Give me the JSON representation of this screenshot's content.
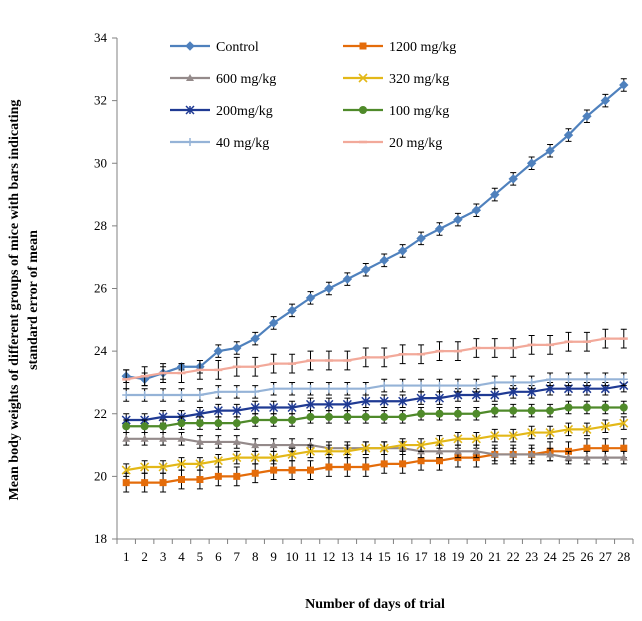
{
  "chart_data": {
    "type": "line",
    "xlabel": "Number of days of trial",
    "ylabel_lines": [
      "Mean body weights of different groups of mice with bars indicating",
      "standard error of mean"
    ],
    "x": [
      "1",
      "2",
      "3",
      "4",
      "5",
      "6",
      "7",
      "8",
      "9",
      "10",
      "11",
      "12",
      "13",
      "14",
      "15",
      "16",
      "17",
      "18",
      "19",
      "20",
      "21",
      "22",
      "23",
      "24",
      "25",
      "26",
      "27",
      "28"
    ],
    "ylim": [
      18,
      34
    ],
    "yticks": [
      "18",
      "20",
      "22",
      "24",
      "26",
      "28",
      "30",
      "32",
      "34"
    ],
    "grid": false,
    "legend_position": "top-left",
    "error_bars": true,
    "series": [
      {
        "name": "Control",
        "color": "#4f81bd",
        "marker": "diamond",
        "values": [
          23.2,
          23.1,
          23.3,
          23.5,
          23.5,
          24.0,
          24.1,
          24.4,
          24.9,
          25.3,
          25.7,
          26.0,
          26.3,
          26.6,
          26.9,
          27.2,
          27.6,
          27.9,
          28.2,
          28.5,
          29.0,
          29.5,
          30.0,
          30.4,
          30.9,
          31.5,
          32.0,
          32.5
        ],
        "errors": [
          0.2,
          0.2,
          0.2,
          0.1,
          0.2,
          0.2,
          0.2,
          0.2,
          0.2,
          0.2,
          0.2,
          0.2,
          0.2,
          0.2,
          0.2,
          0.2,
          0.2,
          0.2,
          0.2,
          0.2,
          0.2,
          0.2,
          0.2,
          0.2,
          0.2,
          0.2,
          0.2,
          0.2
        ]
      },
      {
        "name": "1200 mg/kg",
        "color": "#e46c0a",
        "marker": "square",
        "values": [
          19.8,
          19.8,
          19.8,
          19.9,
          19.9,
          20.0,
          20.0,
          20.1,
          20.2,
          20.2,
          20.2,
          20.3,
          20.3,
          20.3,
          20.4,
          20.4,
          20.5,
          20.5,
          20.6,
          20.6,
          20.7,
          20.7,
          20.7,
          20.8,
          20.8,
          20.9,
          20.9,
          20.9
        ],
        "errors": [
          0.3,
          0.3,
          0.3,
          0.3,
          0.3,
          0.3,
          0.3,
          0.3,
          0.3,
          0.3,
          0.3,
          0.3,
          0.3,
          0.3,
          0.3,
          0.3,
          0.3,
          0.3,
          0.3,
          0.3,
          0.3,
          0.3,
          0.3,
          0.3,
          0.3,
          0.3,
          0.3,
          0.3
        ]
      },
      {
        "name": "600 mg/kg",
        "color": "#948a8a",
        "marker": "triangle",
        "values": [
          21.2,
          21.2,
          21.2,
          21.2,
          21.1,
          21.1,
          21.1,
          21.0,
          21.0,
          21.0,
          21.0,
          20.9,
          20.9,
          20.9,
          20.9,
          20.9,
          20.8,
          20.8,
          20.8,
          20.8,
          20.7,
          20.7,
          20.7,
          20.7,
          20.6,
          20.6,
          20.6,
          20.6
        ],
        "errors": [
          0.2,
          0.2,
          0.2,
          0.2,
          0.2,
          0.2,
          0.2,
          0.2,
          0.2,
          0.2,
          0.2,
          0.2,
          0.2,
          0.2,
          0.2,
          0.2,
          0.2,
          0.2,
          0.2,
          0.2,
          0.2,
          0.2,
          0.2,
          0.2,
          0.2,
          0.2,
          0.2,
          0.2
        ]
      },
      {
        "name": "320 mg/kg",
        "color": "#e3b818",
        "marker": "x",
        "values": [
          20.2,
          20.3,
          20.3,
          20.4,
          20.4,
          20.5,
          20.6,
          20.6,
          20.6,
          20.7,
          20.8,
          20.8,
          20.8,
          20.9,
          20.9,
          21.0,
          21.0,
          21.1,
          21.2,
          21.2,
          21.3,
          21.3,
          21.4,
          21.4,
          21.5,
          21.5,
          21.6,
          21.7
        ],
        "errors": [
          0.2,
          0.2,
          0.2,
          0.2,
          0.2,
          0.2,
          0.2,
          0.2,
          0.2,
          0.2,
          0.2,
          0.2,
          0.2,
          0.2,
          0.2,
          0.2,
          0.2,
          0.2,
          0.2,
          0.2,
          0.2,
          0.2,
          0.2,
          0.2,
          0.2,
          0.2,
          0.2,
          0.2
        ]
      },
      {
        "name": "200mg/kg",
        "color": "#1f3a93",
        "marker": "star",
        "values": [
          21.8,
          21.8,
          21.9,
          21.9,
          22.0,
          22.1,
          22.1,
          22.2,
          22.2,
          22.2,
          22.3,
          22.3,
          22.3,
          22.4,
          22.4,
          22.4,
          22.5,
          22.5,
          22.6,
          22.6,
          22.6,
          22.7,
          22.7,
          22.8,
          22.8,
          22.8,
          22.8,
          22.9
        ],
        "errors": [
          0.2,
          0.2,
          0.2,
          0.2,
          0.2,
          0.2,
          0.2,
          0.2,
          0.2,
          0.2,
          0.2,
          0.2,
          0.2,
          0.2,
          0.2,
          0.2,
          0.2,
          0.2,
          0.2,
          0.2,
          0.2,
          0.2,
          0.2,
          0.2,
          0.2,
          0.2,
          0.2,
          0.2
        ]
      },
      {
        "name": "100 mg/kg",
        "color": "#4f8a2a",
        "marker": "circle",
        "values": [
          21.6,
          21.6,
          21.6,
          21.7,
          21.7,
          21.7,
          21.7,
          21.8,
          21.8,
          21.8,
          21.9,
          21.9,
          21.9,
          21.9,
          21.9,
          21.9,
          22.0,
          22.0,
          22.0,
          22.0,
          22.1,
          22.1,
          22.1,
          22.1,
          22.2,
          22.2,
          22.2,
          22.2
        ],
        "errors": [
          0.2,
          0.2,
          0.2,
          0.2,
          0.2,
          0.2,
          0.2,
          0.2,
          0.2,
          0.2,
          0.2,
          0.2,
          0.2,
          0.2,
          0.2,
          0.2,
          0.2,
          0.2,
          0.2,
          0.2,
          0.2,
          0.2,
          0.2,
          0.2,
          0.2,
          0.2,
          0.2,
          0.2
        ]
      },
      {
        "name": "40 mg/kg",
        "color": "#95b3d7",
        "marker": "plus",
        "values": [
          22.6,
          22.6,
          22.6,
          22.6,
          22.6,
          22.7,
          22.7,
          22.7,
          22.8,
          22.8,
          22.8,
          22.8,
          22.8,
          22.8,
          22.9,
          22.9,
          22.9,
          22.9,
          22.9,
          22.9,
          23.0,
          23.0,
          23.0,
          23.1,
          23.1,
          23.1,
          23.1,
          23.1
        ],
        "errors": [
          0.2,
          0.2,
          0.2,
          0.2,
          0.2,
          0.2,
          0.2,
          0.2,
          0.2,
          0.2,
          0.2,
          0.2,
          0.2,
          0.2,
          0.2,
          0.2,
          0.2,
          0.2,
          0.2,
          0.2,
          0.2,
          0.2,
          0.2,
          0.2,
          0.2,
          0.2,
          0.2,
          0.2
        ]
      },
      {
        "name": "20  mg/kg",
        "color": "#f2a99a",
        "marker": "dash",
        "values": [
          23.1,
          23.2,
          23.3,
          23.3,
          23.4,
          23.4,
          23.5,
          23.5,
          23.6,
          23.6,
          23.7,
          23.7,
          23.7,
          23.8,
          23.8,
          23.9,
          23.9,
          24.0,
          24.0,
          24.1,
          24.1,
          24.1,
          24.2,
          24.2,
          24.3,
          24.3,
          24.4,
          24.4
        ],
        "errors": [
          0.3,
          0.3,
          0.3,
          0.3,
          0.3,
          0.3,
          0.3,
          0.3,
          0.3,
          0.3,
          0.3,
          0.3,
          0.3,
          0.3,
          0.3,
          0.3,
          0.3,
          0.3,
          0.3,
          0.3,
          0.3,
          0.3,
          0.3,
          0.3,
          0.3,
          0.3,
          0.3,
          0.3
        ]
      }
    ]
  }
}
